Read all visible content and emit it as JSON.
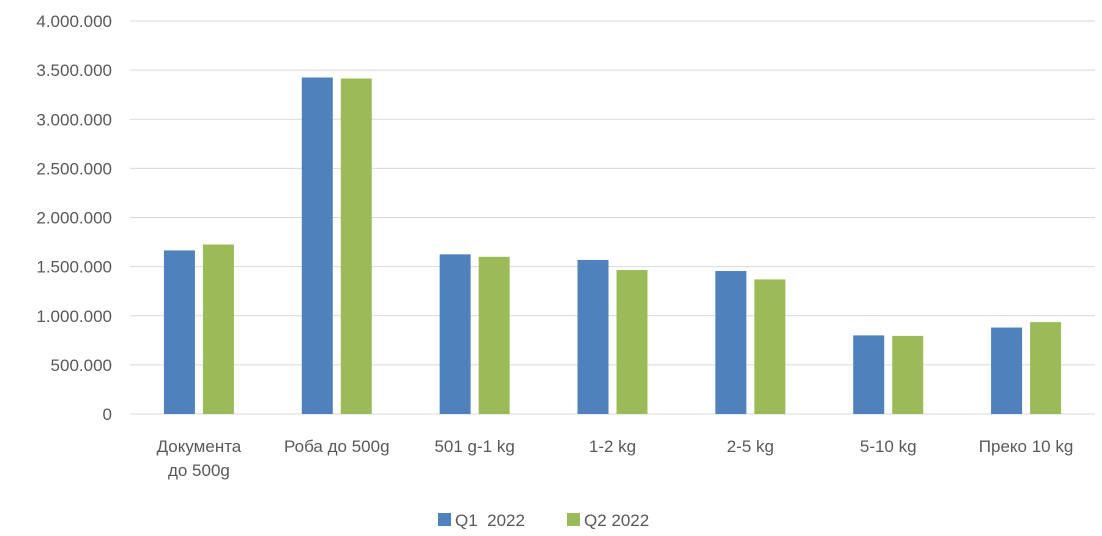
{
  "chart_data": {
    "type": "bar",
    "title": "",
    "xlabel": "",
    "ylabel": "",
    "categories": [
      [
        "Документа",
        "до 500g"
      ],
      [
        "Роба до 500g"
      ],
      [
        "501 g-1 kg"
      ],
      [
        "1-2 kg"
      ],
      [
        "2-5 kg"
      ],
      [
        "5-10 kg"
      ],
      [
        "Преко 10 kg"
      ]
    ],
    "series": [
      {
        "name": "Q1  2022",
        "color": "#4f81bd",
        "values": [
          1665000,
          3425000,
          1625000,
          1568000,
          1455000,
          800000,
          880000
        ]
      },
      {
        "name": "Q2 2022",
        "color": "#9bbb59",
        "values": [
          1725000,
          3415000,
          1600000,
          1465000,
          1370000,
          795000,
          935000
        ]
      }
    ],
    "ylim": [
      0,
      4000000
    ],
    "yticks": [
      0,
      500000,
      1000000,
      1500000,
      2000000,
      2500000,
      3000000,
      3500000,
      4000000
    ],
    "ytick_labels": [
      "0",
      "500.000",
      "1.000.000",
      "1.500.000",
      "2.000.000",
      "2.500.000",
      "3.000.000",
      "3.500.000",
      "4.000.000"
    ],
    "grid": true,
    "gridline_color": "#d9d9d9",
    "legend_position": "bottom"
  }
}
